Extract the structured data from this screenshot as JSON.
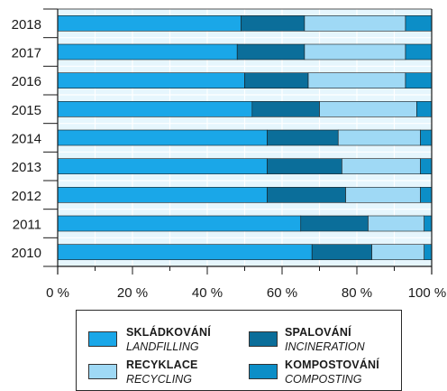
{
  "chart_data": {
    "type": "bar",
    "orientation": "horizontal",
    "stacked": true,
    "categories": [
      "2018",
      "2017",
      "2016",
      "2015",
      "2014",
      "2013",
      "2012",
      "2011",
      "2010"
    ],
    "series": [
      {
        "name": "SKLÁDKOVÁNÍ",
        "values": [
          49,
          48,
          50,
          52,
          56,
          56,
          56,
          65,
          68
        ],
        "color": "#1aa7e8"
      },
      {
        "name": "SPALOVÁNÍ",
        "values": [
          17,
          18,
          17,
          18,
          19,
          20,
          21,
          18,
          16
        ],
        "color": "#0b6e9a"
      },
      {
        "name": "RECYKLACE",
        "values": [
          27,
          27,
          26,
          26,
          22,
          21,
          20,
          15,
          14
        ],
        "color": "#9fd9f5"
      },
      {
        "name": "KOMPOSTOVÁNÍ",
        "values": [
          7,
          7,
          7,
          4,
          3,
          3,
          3,
          2,
          2
        ],
        "color": "#0c8ec7"
      }
    ],
    "x_ticks": [
      "0 %",
      "20 %",
      "40 %",
      "60 %",
      "80 %",
      "100 %"
    ],
    "xlim": [
      0,
      100
    ],
    "grid": true,
    "legend_position": "bottom"
  },
  "legend": {
    "items": [
      {
        "title": "SKLÁDKOVÁNÍ",
        "subtitle": "LANDFILLING",
        "color": "#1aa7e8"
      },
      {
        "title": "SPALOVÁNÍ",
        "subtitle": "INCINERATION",
        "color": "#0b6e9a"
      },
      {
        "title": "RECYKLACE",
        "subtitle": "RECYCLING",
        "color": "#9fd9f5"
      },
      {
        "title": "KOMPOSTOVÁNÍ",
        "subtitle": "COMPOSTING",
        "color": "#0c8ec7"
      }
    ]
  },
  "colors": {
    "plot_background": "#e6f6fd",
    "grid": "#ffffff",
    "axis": "#1a1a1a",
    "bar_border": "#1a1a1a"
  }
}
